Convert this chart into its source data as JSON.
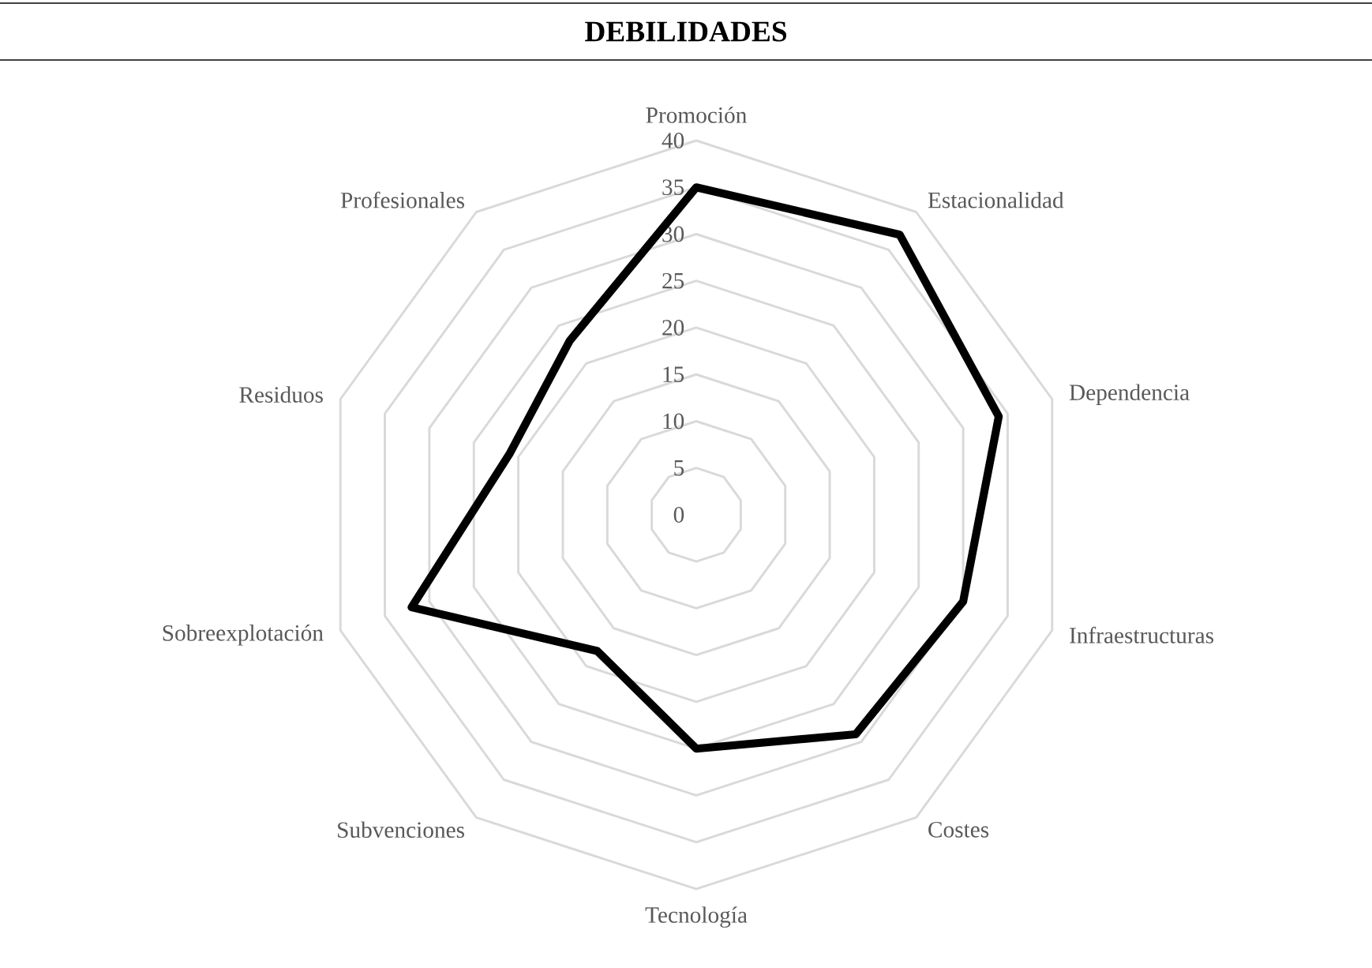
{
  "chart_data": {
    "type": "radar",
    "title": "DEBILIDADES",
    "categories": [
      "Promoción",
      "Estacionalidad",
      "Dependencia",
      "Infraestructuras",
      "Costes",
      "Tecnología",
      "Subvenciones",
      "Sobreexplotación",
      "Residuos",
      "Profesionales"
    ],
    "series": [
      {
        "color": "#000000",
        "values": [
          35,
          37,
          34,
          30,
          29,
          25,
          18,
          32,
          21,
          23
        ]
      }
    ],
    "ylim": [
      0,
      40
    ],
    "yticks": [
      0,
      5,
      10,
      15,
      20,
      25,
      30,
      35,
      40
    ],
    "grid": true
  }
}
